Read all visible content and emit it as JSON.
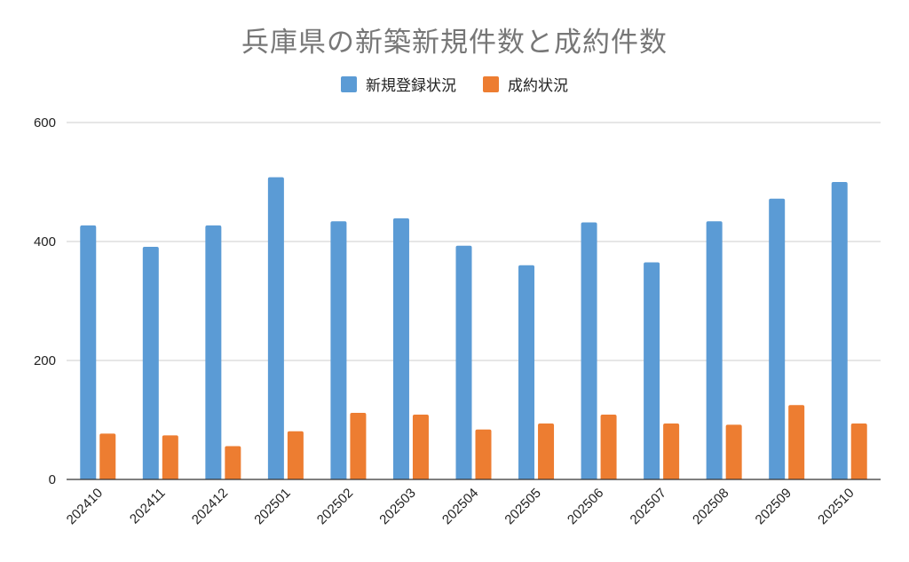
{
  "chart_data": {
    "type": "bar",
    "title": "兵庫県の新築新規件数と成約件数",
    "categories": [
      "202410",
      "202411",
      "202412",
      "202501",
      "202502",
      "202503",
      "202504",
      "202505",
      "202506",
      "202507",
      "202508",
      "202509",
      "202510"
    ],
    "series": [
      {
        "name": "新規登録状況",
        "color": "#5b9bd5",
        "values": [
          427,
          391,
          427,
          508,
          434,
          439,
          393,
          360,
          432,
          365,
          434,
          472,
          500
        ]
      },
      {
        "name": "成約状況",
        "color": "#ed7d31",
        "values": [
          77,
          74,
          56,
          81,
          112,
          109,
          84,
          94,
          109,
          94,
          92,
          125,
          94
        ]
      }
    ],
    "ylim": [
      0,
      600
    ],
    "yticks": [
      0,
      200,
      400,
      600
    ],
    "grid": true,
    "legend_position": "top-center",
    "xlabel": "",
    "ylabel": ""
  }
}
